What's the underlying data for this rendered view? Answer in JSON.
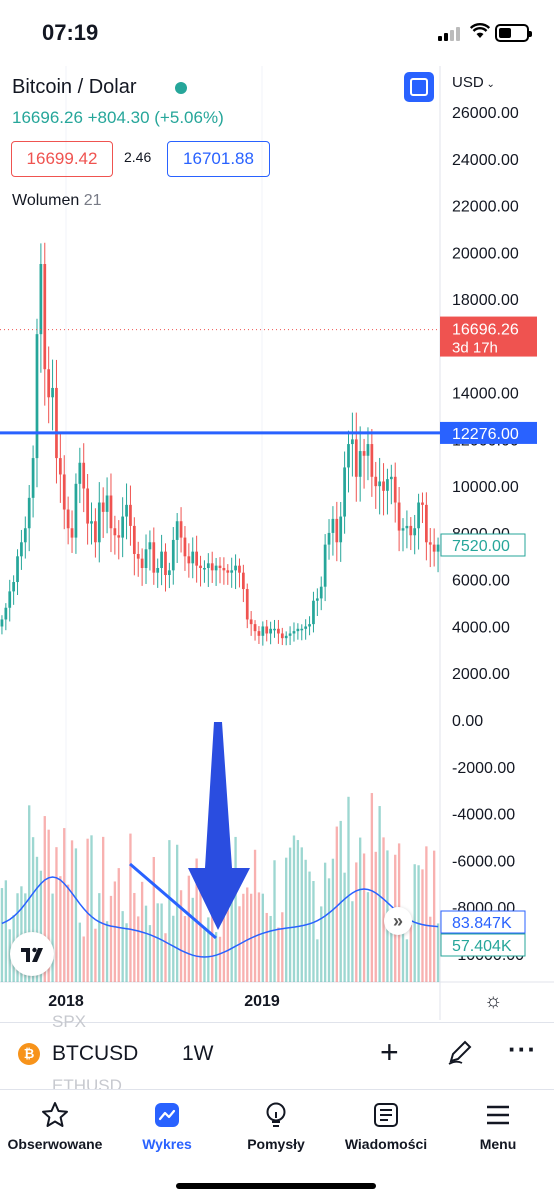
{
  "status_bar": {
    "time": "07:19"
  },
  "legend": {
    "title": "Bitcoin / Dolar",
    "price_line": "16696.26 +804.30 (+5.06%)",
    "bid": "16699.42",
    "spread": "2.46",
    "ask": "16701.88",
    "volume_label": "Wolumen",
    "volume_length": "21"
  },
  "currency": "USD",
  "colors": {
    "up": "#26a69a",
    "down": "#ef5350",
    "accent": "#2962ff"
  },
  "chart_data": {
    "type": "candlestick",
    "title": "Bitcoin / Dolar",
    "interval": "1W",
    "y_axis": {
      "ticks": [
        26000,
        24000,
        22000,
        20000,
        18000,
        16000,
        14000,
        12000,
        10000,
        8000,
        6000,
        4000,
        2000,
        0,
        -2000,
        -4000,
        -6000,
        -8000,
        -10000
      ],
      "range": [
        -10500,
        27000
      ]
    },
    "x_axis": {
      "labels": [
        "2018",
        "2019"
      ]
    },
    "price_series": {
      "name": "BTCUSD",
      "points": [
        4300,
        4800,
        5500,
        5900,
        7000,
        7600,
        8200,
        9500,
        11200,
        16500,
        19500,
        15000,
        13800,
        14200,
        11200,
        10500,
        9000,
        8200,
        7800,
        10100,
        11000,
        9900,
        8400,
        8500,
        7600,
        9300,
        8900,
        9600,
        8200,
        7900,
        7800,
        8700,
        9200,
        8300,
        7100,
        6900,
        6500,
        7300,
        7600,
        6300,
        6500,
        7200,
        6200,
        6400,
        7700,
        8500,
        7800,
        7000,
        6700,
        7200,
        6600,
        6500,
        6500,
        6700,
        6400,
        6600,
        6500,
        6400,
        6300,
        6400,
        6600,
        6300,
        5600,
        4300,
        4100,
        3800,
        3600,
        4000,
        3700,
        3900,
        3900,
        3700,
        3500,
        3600,
        3700,
        3800,
        3900,
        3900,
        4000,
        4100,
        5100,
        5200,
        5700,
        7500,
        8000,
        8600,
        7600,
        8700,
        10800,
        11800,
        12000,
        10400,
        11500,
        11300,
        11800,
        10400,
        10000,
        10200,
        9800,
        10300,
        10400,
        9300,
        8100,
        8200,
        8300,
        7900,
        8200,
        9300,
        9200,
        7600,
        7500,
        7200,
        7500
      ],
      "last_label": "7520.00"
    },
    "price_lines": [
      {
        "label": "12276.00",
        "value": 12276,
        "color": "#2962ff",
        "style": "solid"
      },
      {
        "label": "16696.26",
        "sublabel": "3d 17h",
        "value": 16696.26,
        "color": "#ef5350",
        "style": "dotted"
      }
    ],
    "volume_series": {
      "name": "Wolumen",
      "length": 21,
      "ma_label": "83.847K",
      "last_label": "57.404K"
    },
    "annotations": [
      "trend-line",
      "down-arrow"
    ]
  },
  "toolbar": {
    "symbol": "BTCUSD",
    "interval": "1W",
    "ghost_above": "SPX",
    "ghost_below": "ETHUSD"
  },
  "tabs": [
    {
      "label": "Obserwowane",
      "icon": "star-icon"
    },
    {
      "label": "Wykres",
      "icon": "chart-icon",
      "active": true
    },
    {
      "label": "Pomysły",
      "icon": "bulb-icon"
    },
    {
      "label": "Wiadomości",
      "icon": "news-icon"
    },
    {
      "label": "Menu",
      "icon": "menu-icon"
    }
  ]
}
